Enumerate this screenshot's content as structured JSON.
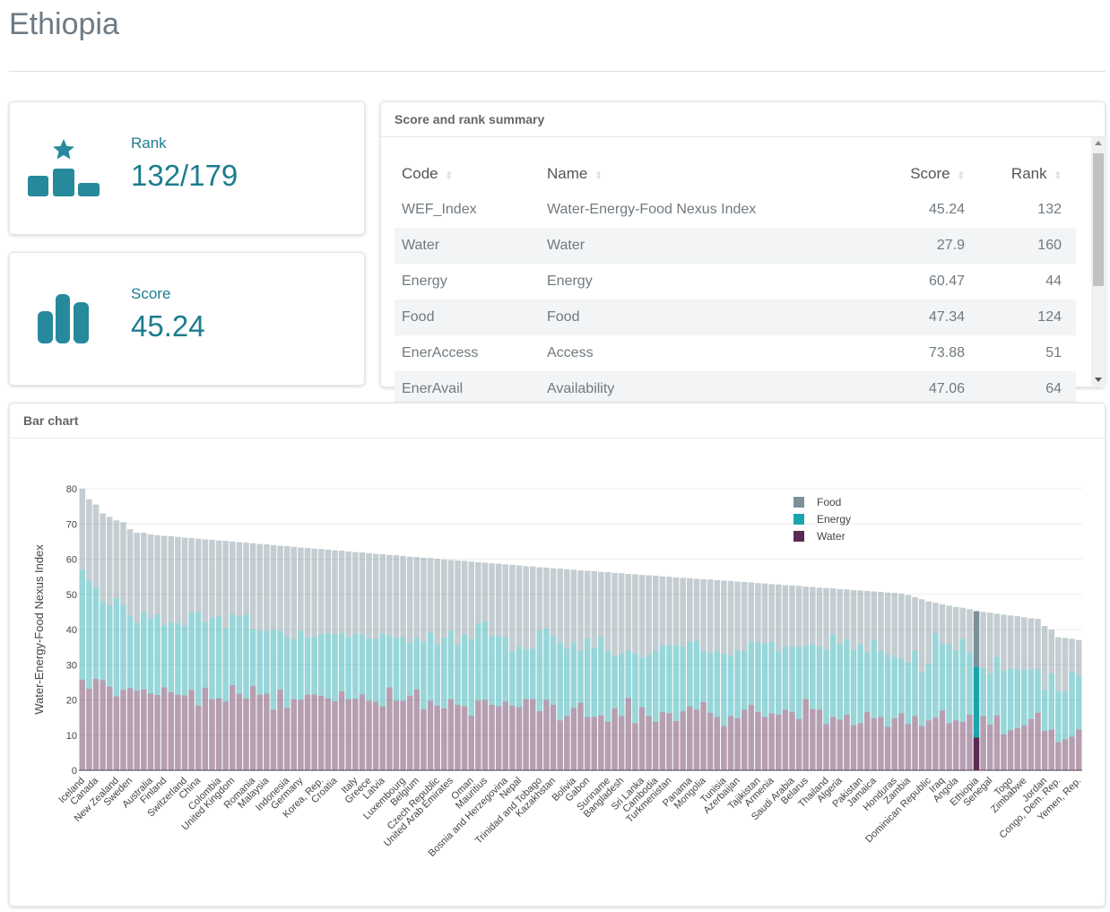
{
  "header": {
    "title": "Ethiopia"
  },
  "cards": [
    {
      "label": "Rank",
      "value": "132/179"
    },
    {
      "label": "Score",
      "value": "45.24"
    }
  ],
  "table": {
    "title": "Score and rank summary",
    "columns": [
      "Code",
      "Name",
      "Score",
      "Rank"
    ],
    "rows": [
      [
        "WEF_Index",
        "Water-Energy-Food Nexus Index",
        45.24,
        132
      ],
      [
        "Water",
        "Water",
        27.9,
        160
      ],
      [
        "Energy",
        "Energy",
        60.47,
        44
      ],
      [
        "Food",
        "Food",
        47.34,
        124
      ],
      [
        "EnerAccess",
        "Access",
        73.88,
        51
      ],
      [
        "EnerAvail",
        "Availability",
        47.06,
        64
      ]
    ]
  },
  "chart_data": {
    "type": "stacked_bar",
    "title": "Bar chart",
    "y_label": "Water-Energy-Food Nexus Index",
    "ylim": [
      0,
      80
    ],
    "yticks": [
      0,
      10,
      20,
      30,
      40,
      50,
      60,
      70,
      80
    ],
    "grid": true,
    "legend": "top-right",
    "categories": [
      "Iceland",
      null,
      "Canada",
      null,
      null,
      "New Zealand",
      null,
      "Sweden",
      null,
      null,
      "Australia",
      null,
      "Finland",
      null,
      null,
      "Switzerland",
      null,
      "China",
      null,
      null,
      "Colombia",
      null,
      "United Kingdom",
      null,
      null,
      "Romania",
      null,
      "Malaysia",
      null,
      null,
      "Indonesia",
      null,
      "Germany",
      null,
      null,
      "Korea, Rep.",
      null,
      "Croatia",
      null,
      null,
      "Italy",
      null,
      "Greece",
      null,
      "Latvia",
      null,
      null,
      "Luxembourg",
      null,
      "Belgium",
      null,
      null,
      "Czech Republic",
      null,
      "United Arab Emirates",
      null,
      null,
      "Oman",
      null,
      "Mauritius",
      null,
      null,
      "Bosnia and Herzegovina",
      null,
      "Nepal",
      null,
      null,
      "Trinidad and Tobago",
      null,
      "Kazakhstan",
      null,
      null,
      "Bolivia",
      null,
      "Gabon",
      null,
      null,
      "Suriname",
      null,
      "Bangladesh",
      null,
      null,
      "Sri Lanka",
      null,
      "Cambodia",
      null,
      "Turkmenistan",
      null,
      null,
      "Panama",
      null,
      "Mongolia",
      null,
      null,
      "Tunisia",
      null,
      "Azerbaijan",
      null,
      null,
      "Tajikistan",
      null,
      "Armenia",
      null,
      null,
      "Saudi Arabia",
      null,
      "Belarus",
      null,
      null,
      "Thailand",
      null,
      "Algeria",
      null,
      null,
      "Pakistan",
      null,
      "Jamaica",
      null,
      null,
      "Honduras",
      null,
      "Zambia",
      null,
      null,
      "Dominican Republic",
      null,
      "Iraq",
      null,
      "Angola",
      null,
      null,
      "Ethiopia",
      null,
      "Senegal",
      null,
      null,
      "Togo",
      null,
      "Zimbabwe",
      null,
      null,
      "Jordan",
      null,
      "Congo, Dem. Rep.",
      null,
      null,
      "Yemen, Rep."
    ],
    "series": [
      {
        "name": "Water",
        "color": "#5b2a52",
        "values": [
          25.8,
          23.2,
          26,
          25.6,
          23.8,
          21,
          22.8,
          23.4,
          22.6,
          23,
          21.8,
          21.4,
          23.6,
          22.2,
          21.5,
          21.3,
          22.8,
          18.4,
          23.5,
          20.2,
          20.5,
          19.6,
          24.2,
          21.8,
          20.4,
          24,
          21.5,
          21.8,
          17.2,
          23,
          17.8,
          20.2,
          20,
          21.5,
          21.6,
          21.2,
          20.5,
          19.6,
          22.4,
          20.2,
          20.3,
          21.6,
          19.8,
          19.5,
          18.2,
          23.6,
          19.8,
          19.8,
          21.2,
          23,
          17.4,
          19.8,
          18.4,
          17.6,
          20.2,
          18.6,
          18.2,
          15.6,
          19.8,
          20,
          18.6,
          18.2,
          19.5,
          18.4,
          18,
          20.2,
          20.2,
          16.8,
          20,
          18.6,
          14.2,
          15.4,
          17.8,
          19.2,
          15.2,
          15.2,
          15.6,
          13.8,
          17.6,
          15.4,
          20.6,
          13.4,
          18,
          15.4,
          13.8,
          16.6,
          16.2,
          14,
          16.8,
          18.2,
          17.2,
          19.4,
          16.4,
          15.2,
          12.6,
          15.4,
          14.8,
          17.2,
          18.6,
          16.6,
          15.2,
          16.2,
          15.8,
          17.2,
          16.6,
          14.6,
          20.2,
          17.4,
          17.2,
          13.2,
          15.2,
          14.4,
          15.8,
          12.8,
          13.4,
          16.6,
          14.8,
          15.2,
          12.4,
          14.8,
          16.2,
          13.2,
          15.4,
          12.6,
          14.2,
          15,
          17,
          13.4,
          14.2,
          13.8,
          15.8,
          9.3,
          15.4,
          13,
          15.6,
          10.2,
          11.4,
          12,
          12.8,
          14.6,
          16.4,
          11.2,
          11.6,
          8,
          8.8,
          9.6,
          11.6
        ]
      },
      {
        "name": "Energy",
        "color": "#19a5ab",
        "values": [
          31.2,
          30.8,
          26,
          22.4,
          23.2,
          28,
          24.2,
          20.6,
          19.4,
          22,
          21.4,
          22.8,
          17.4,
          19.8,
          20.3,
          19.7,
          22,
          26.6,
          18.5,
          23,
          23.4,
          20.8,
          20.2,
          22,
          23.8,
          16,
          18.4,
          17.8,
          22.8,
          16.6,
          20.2,
          17,
          19.6,
          16.2,
          16.2,
          17.4,
          18.5,
          19,
          16.6,
          17.6,
          18.5,
          17,
          17.6,
          17.9,
          20.6,
          14.6,
          17.7,
          18.2,
          15,
          14.6,
          19.2,
          19.4,
          17.4,
          20.2,
          19.6,
          17.2,
          20.4,
          21.6,
          22,
          22.4,
          19.6,
          20,
          18.3,
          15.4,
          17.2,
          14.2,
          14.4,
          23,
          20.2,
          19.6,
          22.2,
          19.2,
          18.4,
          14.8,
          22.4,
          19.6,
          22.4,
          20.2,
          14.8,
          17.8,
          13.4,
          19.8,
          14,
          17.4,
          20.2,
          18.8,
          19.4,
          21.6,
          18.4,
          18.4,
          19.6,
          14.6,
          17,
          18.8,
          20.6,
          17,
          19.2,
          16.8,
          18,
          19.8,
          20.8,
          20.2,
          18,
          17.8,
          18.6,
          20.4,
          15.2,
          18.4,
          18.2,
          21,
          23.4,
          21.6,
          21.4,
          21.4,
          22.4,
          17,
          22.4,
          18.8,
          20.6,
          17.4,
          15.6,
          17.4,
          18.6,
          15.4,
          16,
          24,
          18.8,
          22.4,
          19.8,
          23.6,
          17.6,
          20.16,
          13.6,
          14.6,
          16.6,
          18.2,
          17.4,
          16.8,
          15.8,
          14,
          12.4,
          11.6,
          16,
          14.4,
          13.8,
          18.4,
          15.4
        ]
      },
      {
        "name": "Food",
        "color": "#7d9099",
        "values": [
          23,
          23,
          23.5,
          25,
          25,
          22,
          23.5,
          24.5,
          25.5,
          22.5,
          23.8,
          22.6,
          25.6,
          24.5,
          24.5,
          25.1,
          21.2,
          20.8,
          23.6,
          22.3,
          21.4,
          24.8,
          20.6,
          21,
          20.5,
          24.5,
          24.4,
          24.6,
          24,
          24.2,
          25.7,
          26.3,
          23.7,
          25.5,
          25.2,
          24.3,
          23.7,
          23.9,
          23.4,
          24.4,
          23.2,
          23.3,
          24.3,
          24.1,
          22.6,
          23,
          23.6,
          22.9,
          24.5,
          23,
          23.8,
          21.1,
          24.3,
          22.1,
          20,
          23.8,
          20.9,
          22.1,
          17.3,
          16.6,
          20.6,
          20.5,
          20.7,
          24.6,
          23,
          23.6,
          23.3,
          17.9,
          17.4,
          19.2,
          20.9,
          22.5,
          20.8,
          22.8,
          19.1,
          21.8,
          18.4,
          22.3,
          23.7,
          22.8,
          21.8,
          22.5,
          23.5,
          22.6,
          21.3,
          19.7,
          19.4,
          19.2,
          19.5,
          18,
          17.6,
          20.3,
          20.8,
          20,
          20.7,
          21.4,
          19.6,
          19.5,
          16.8,
          16.8,
          17.1,
          16.5,
          19,
          17.6,
          17.3,
          17.4,
          16.8,
          16.3,
          16.5,
          17.6,
          13.1,
          15.5,
          14.2,
          17,
          15.3,
          17.4,
          13.6,
          16.7,
          17.5,
          18.2,
          18.4,
          19.2,
          15.2,
          20.6,
          17.8,
          8.6,
          11.4,
          11,
          12.4,
          8.8,
          12.4,
          15.78,
          16,
          17.2,
          12.3,
          15.8,
          15.2,
          15,
          14.9,
          14.6,
          14.2,
          18.2,
          12.4,
          15.4,
          15,
          9.4,
          10
        ]
      }
    ]
  }
}
